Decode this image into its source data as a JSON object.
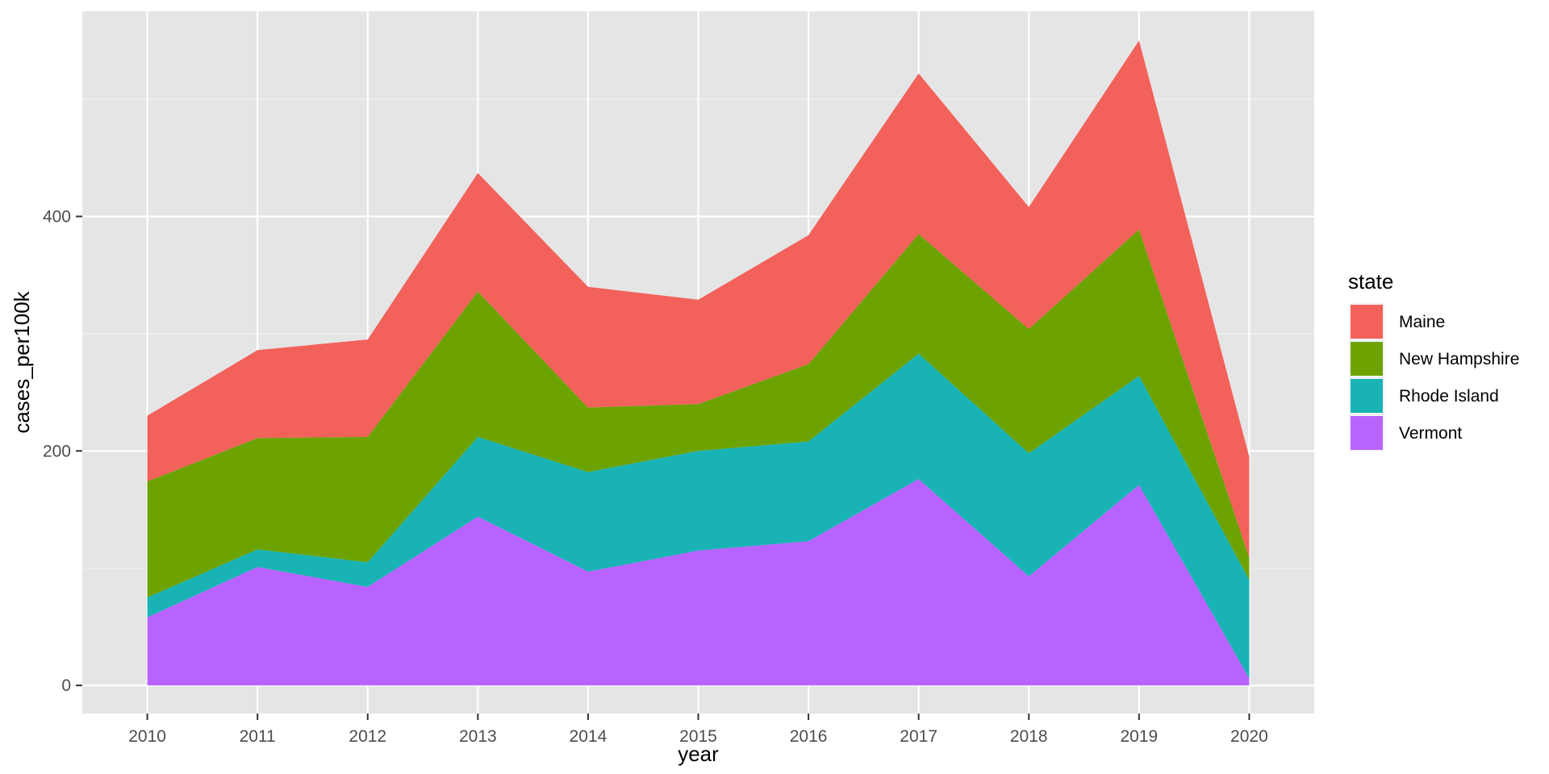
{
  "chart_data": {
    "type": "area",
    "stacked": true,
    "title": "",
    "xlabel": "year",
    "ylabel": "cases_per100k",
    "x": [
      2010,
      2011,
      2012,
      2013,
      2014,
      2015,
      2016,
      2017,
      2018,
      2019,
      2020
    ],
    "x_tick_labels": [
      "2010",
      "2011",
      "2012",
      "2013",
      "2014",
      "2015",
      "2016",
      "2017",
      "2018",
      "2019",
      "2020"
    ],
    "y_ticks": [
      0,
      200,
      400
    ],
    "y_tick_labels": [
      "0",
      "200",
      "400"
    ],
    "xlim": [
      2009.41,
      2020.59
    ],
    "ylim": [
      -24,
      575
    ],
    "grid": true,
    "background": "#e5e5e5",
    "gridline_color": "#ffffff",
    "legend": {
      "title": "state",
      "position": "right",
      "entries": [
        "Maine",
        "New Hampshire",
        "Rhode Island",
        "Vermont"
      ]
    },
    "series": [
      {
        "name": "Vermont",
        "color": "#b863ff",
        "values": [
          58,
          101,
          84,
          144,
          97,
          115,
          123,
          176,
          93,
          171,
          6
        ]
      },
      {
        "name": "Rhode Island",
        "color": "#19b3b6",
        "values": [
          17,
          15,
          21,
          68,
          85,
          85,
          85,
          107,
          105,
          93,
          84
        ]
      },
      {
        "name": "New Hampshire",
        "color": "#6ca303",
        "values": [
          99,
          95,
          107,
          124,
          55,
          40,
          66,
          102,
          106,
          125,
          19
        ]
      },
      {
        "name": "Maine",
        "color": "#f3615b",
        "values": [
          56,
          75,
          83,
          101,
          103,
          89,
          110,
          137,
          104,
          161,
          86
        ]
      }
    ]
  }
}
